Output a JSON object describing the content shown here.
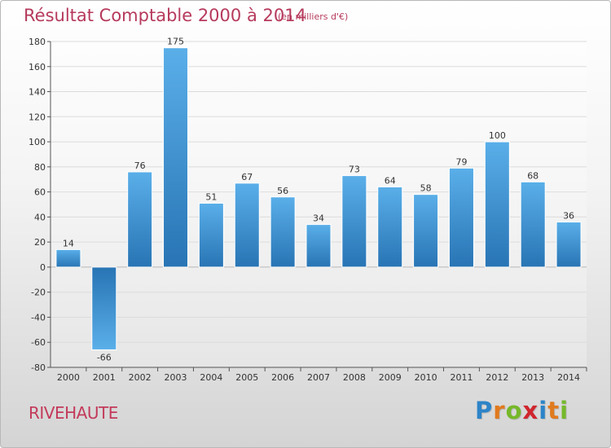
{
  "colors": {
    "title": "#b63a5c",
    "bar_top": "#5aafe9",
    "bar_bottom": "#2874b4",
    "axis": "#555555",
    "grid": "#dcdcdc"
  },
  "footer": {
    "place": "RIVEHAUTE",
    "logo_letters": [
      "P",
      "r",
      "o",
      "x",
      "i",
      "t",
      "i"
    ],
    "logo_colors": [
      "#2d84c8",
      "#e07a1e",
      "#76b82a",
      "#d0262e",
      "#2d84c8",
      "#e07a1e",
      "#76b82a"
    ]
  },
  "chart_data": {
    "type": "bar",
    "title": "Résultat Comptable 2000 à 2014",
    "subtitle": "(en milliers d'€)",
    "xlabel": "",
    "ylabel": "",
    "categories": [
      "2000",
      "2001",
      "2002",
      "2003",
      "2004",
      "2005",
      "2006",
      "2007",
      "2008",
      "2009",
      "2010",
      "2011",
      "2012",
      "2013",
      "2014"
    ],
    "values": [
      14,
      -66,
      76,
      175,
      51,
      67,
      56,
      34,
      73,
      64,
      58,
      79,
      100,
      68,
      36
    ],
    "labels": [
      "14",
      "-66",
      "76",
      "175",
      "51",
      "67",
      "56",
      "34",
      "73",
      "64",
      "58",
      "79",
      "100",
      "68",
      "36"
    ],
    "ylim": [
      -80,
      180
    ],
    "yticks": [
      -80,
      -60,
      -40,
      -20,
      0,
      20,
      40,
      60,
      80,
      100,
      120,
      140,
      160,
      180
    ],
    "ytick_labels": [
      "-80",
      "-60",
      "-40",
      "-20",
      "0",
      "20",
      "40",
      "60",
      "80",
      "100",
      "120",
      "140",
      "160",
      "180"
    ],
    "grid": true,
    "legend": "none"
  }
}
